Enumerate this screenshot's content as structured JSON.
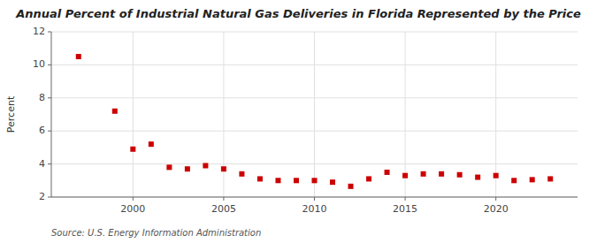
{
  "chart_data": {
    "type": "scatter",
    "title": "Annual Percent of Industrial Natural Gas Deliveries in Florida Represented by the Price",
    "y_label": "Percent",
    "annotations": [
      "Source: U.S. Energy Information Administration"
    ],
    "x": [
      1997,
      1999,
      2000,
      2001,
      2002,
      2003,
      2004,
      2005,
      2006,
      2007,
      2008,
      2009,
      2010,
      2011,
      2012,
      2013,
      2014,
      2015,
      2016,
      2017,
      2018,
      2019,
      2020,
      2021,
      2022,
      2023
    ],
    "values": [
      10.5,
      7.2,
      4.9,
      5.2,
      3.8,
      3.7,
      3.9,
      3.7,
      3.4,
      3.1,
      3.0,
      3.0,
      3.0,
      2.9,
      2.65,
      3.1,
      3.5,
      3.3,
      3.4,
      3.4,
      3.35,
      3.2,
      3.3,
      3.0,
      3.05,
      3.1
    ],
    "color": "#cc0000",
    "marker": "square",
    "xlim": [
      1995.5,
      2024.5
    ],
    "xticks": [
      2000,
      2005,
      2010,
      2015,
      2020
    ],
    "ylim": [
      2,
      12
    ],
    "yticks": [
      2,
      4,
      6,
      8,
      10,
      12
    ],
    "grid": true
  }
}
